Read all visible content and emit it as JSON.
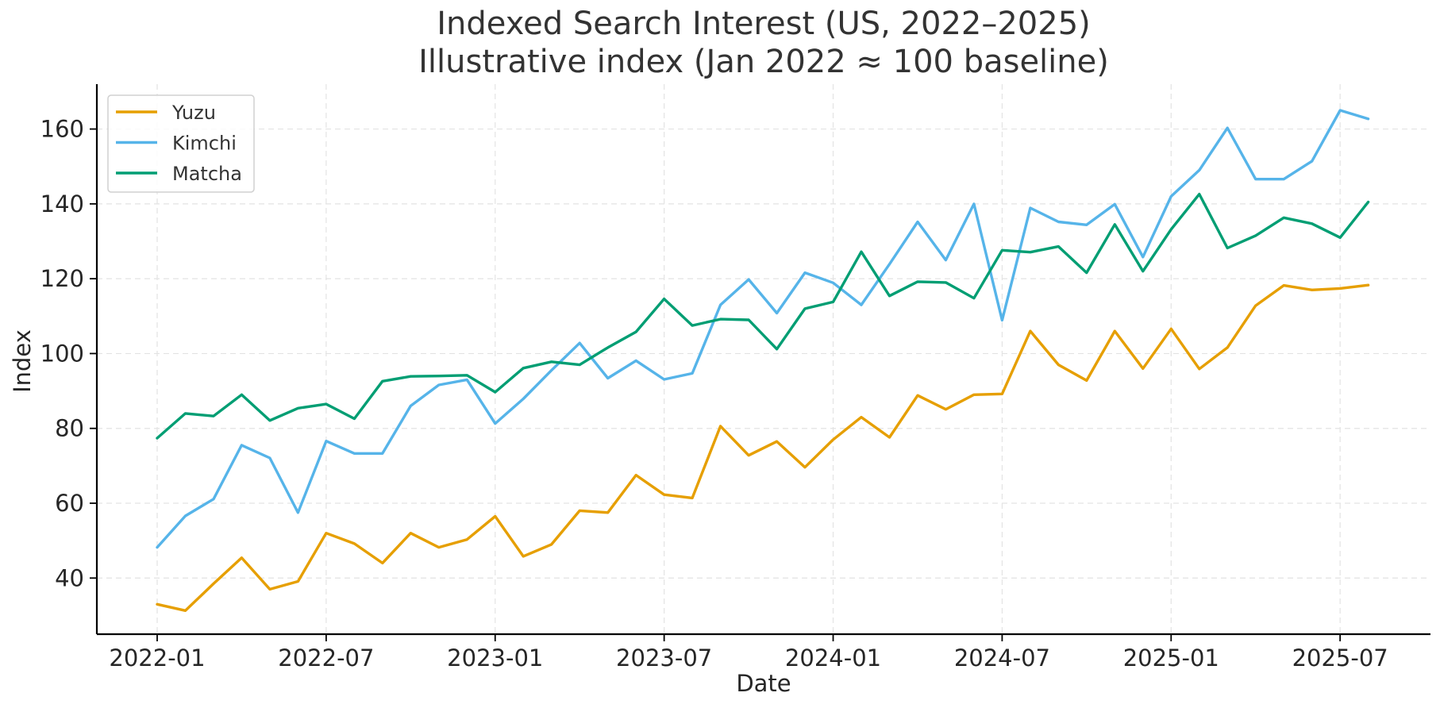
{
  "chart_data": {
    "type": "line",
    "title": "Indexed Search Interest (US, 2022–2025)",
    "subtitle": "Illustrative index (Jan 2022 ≈ 100 baseline)",
    "xlabel": "Date",
    "ylabel": "Index",
    "x_start": "2022-01",
    "x_tick_labels": [
      "2022-01",
      "2022-07",
      "2023-01",
      "2023-07",
      "2024-01",
      "2024-07",
      "2025-01",
      "2025-07"
    ],
    "xlim": [
      "2021-11",
      "2025-10"
    ],
    "ylim": [
      25,
      172
    ],
    "y_ticks": [
      40,
      60,
      80,
      100,
      120,
      140,
      160
    ],
    "grid": true,
    "legend_position": "top-left",
    "x": [
      "2022-01",
      "2022-02",
      "2022-03",
      "2022-04",
      "2022-05",
      "2022-06",
      "2022-07",
      "2022-08",
      "2022-09",
      "2022-10",
      "2022-11",
      "2022-12",
      "2023-01",
      "2023-02",
      "2023-03",
      "2023-04",
      "2023-05",
      "2023-06",
      "2023-07",
      "2023-08",
      "2023-09",
      "2023-10",
      "2023-11",
      "2023-12",
      "2024-01",
      "2024-02",
      "2024-03",
      "2024-04",
      "2024-05",
      "2024-06",
      "2024-07",
      "2024-08",
      "2024-09",
      "2024-10",
      "2024-11",
      "2024-12",
      "2025-01",
      "2025-02",
      "2025-03",
      "2025-04",
      "2025-05",
      "2025-06",
      "2025-07",
      "2025-08"
    ],
    "series": [
      {
        "name": "Yuzu",
        "color": "#E69F00",
        "values": [
          33.0,
          31.3,
          38.5,
          45.4,
          37.0,
          39.1,
          52.0,
          49.2,
          44.0,
          52.0,
          48.2,
          50.3,
          56.5,
          45.8,
          49.0,
          58.0,
          57.5,
          67.5,
          62.3,
          61.4,
          80.6,
          72.8,
          76.5,
          69.6,
          77.0,
          83.0,
          77.6,
          88.8,
          85.1,
          89.0,
          89.2,
          106.0,
          97.0,
          92.8,
          106.0,
          96.0,
          106.6,
          95.9,
          101.6,
          112.8,
          118.2,
          117.0,
          117.4,
          118.3
        ]
      },
      {
        "name": "Kimchi",
        "color": "#56B4E9",
        "values": [
          48.2,
          56.6,
          61.1,
          75.5,
          72.1,
          57.5,
          76.6,
          73.3,
          73.3,
          86.0,
          91.6,
          93.0,
          81.3,
          87.9,
          95.5,
          102.8,
          93.4,
          98.1,
          93.1,
          94.7,
          113.0,
          119.8,
          110.8,
          121.6,
          118.9,
          113.0,
          123.9,
          135.2,
          125.0,
          140.0,
          108.9,
          138.9,
          135.2,
          134.4,
          139.9,
          125.8,
          142.0,
          149.0,
          160.3,
          146.6,
          146.6,
          151.4,
          165.0,
          162.7
        ]
      },
      {
        "name": "Matcha",
        "color": "#009E73",
        "values": [
          77.4,
          84.0,
          83.3,
          89.0,
          82.1,
          85.4,
          86.5,
          82.6,
          92.6,
          93.9,
          94.0,
          94.2,
          89.7,
          96.1,
          97.8,
          97.0,
          101.6,
          105.8,
          114.6,
          107.5,
          109.2,
          109.0,
          101.2,
          112.0,
          113.8,
          127.2,
          115.4,
          119.2,
          119.0,
          114.8,
          127.6,
          127.1,
          128.6,
          121.6,
          134.5,
          122.0,
          133.2,
          142.6,
          128.2,
          131.5,
          136.3,
          134.7,
          131.0,
          140.5
        ]
      }
    ]
  }
}
